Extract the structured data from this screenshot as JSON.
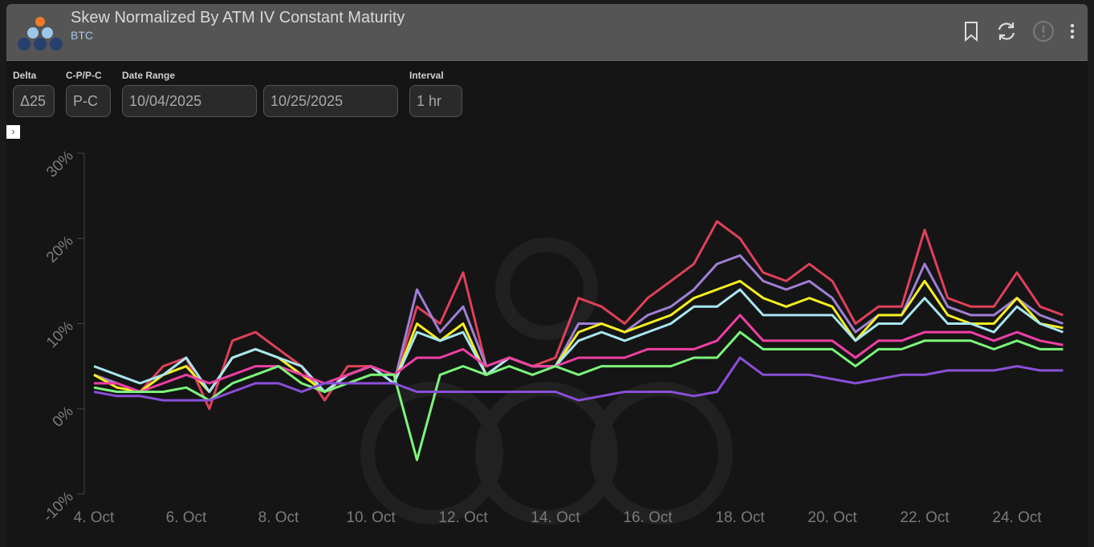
{
  "header": {
    "title": "Skew Normalized By ATM IV Constant Maturity",
    "subtitle": "BTC",
    "icons": [
      "bookmark-icon",
      "refresh-icon",
      "alert-icon",
      "more-vertical-icon"
    ]
  },
  "controls": {
    "delta": {
      "label": "Delta",
      "value": "Δ25"
    },
    "cp": {
      "label": "C-P/P-C",
      "value": "P-C"
    },
    "date_range": {
      "label": "Date Range",
      "start": "10/04/2025",
      "end": "10/25/2025"
    },
    "interval": {
      "label": "Interval",
      "value": "1 hr"
    }
  },
  "chart_data": {
    "type": "line",
    "title": "",
    "xlabel": "",
    "ylabel": "",
    "ylim": [
      -10,
      30
    ],
    "yticks": [
      "-10%",
      "0%",
      "10%",
      "20%",
      "30%"
    ],
    "ytick_values": [
      -10,
      0,
      10,
      20,
      30
    ],
    "xticks": [
      "4. Oct",
      "6. Oct",
      "8. Oct",
      "10. Oct",
      "12. Oct",
      "14. Oct",
      "16. Oct",
      "18. Oct",
      "20. Oct",
      "22. Oct",
      "24. Oct"
    ],
    "xtick_days": [
      0,
      2,
      4,
      6,
      8,
      10,
      12,
      14,
      16,
      18,
      20
    ],
    "x_start": "2025-10-04",
    "x_step_days": 0.5,
    "grid": false,
    "legend": "none",
    "series": [
      {
        "color": "#e0405a",
        "values": [
          4,
          3,
          2,
          5,
          6,
          0,
          8,
          9,
          7,
          5,
          1,
          5,
          5,
          3,
          12,
          10,
          16,
          5,
          6,
          5,
          6,
          13,
          12,
          10,
          13,
          15,
          17,
          22,
          20,
          16,
          15,
          17,
          15,
          10,
          12,
          12,
          21,
          13,
          12,
          12,
          16,
          12,
          11
        ]
      },
      {
        "color": "#a07fd6",
        "values": [
          4,
          3,
          2,
          4,
          5,
          2,
          6,
          7,
          6,
          4,
          2,
          4,
          5,
          3,
          14,
          9,
          12,
          5,
          6,
          5,
          5,
          10,
          10,
          9,
          11,
          12,
          14,
          17,
          18,
          15,
          14,
          15,
          13,
          9,
          11,
          11,
          17,
          12,
          11,
          11,
          13,
          11,
          10
        ]
      },
      {
        "color": "#f5f01e",
        "values": [
          4,
          2.5,
          2,
          4,
          5,
          2,
          6,
          7,
          6,
          4,
          2,
          4,
          5,
          3,
          10,
          8,
          10,
          4,
          6,
          5,
          5,
          9,
          10,
          9,
          10,
          11,
          13,
          14,
          15,
          13,
          12,
          13,
          12,
          8,
          11,
          11,
          15,
          11,
          10,
          10,
          13,
          10,
          9.5
        ]
      },
      {
        "color": "#a8e6f0",
        "values": [
          5,
          4,
          3,
          4,
          6,
          2,
          6,
          7,
          6,
          5,
          2,
          4,
          5,
          3,
          9,
          8,
          9,
          4,
          6,
          5,
          5,
          8,
          9,
          8,
          9,
          10,
          12,
          12,
          14,
          11,
          11,
          11,
          11,
          8,
          10,
          10,
          13,
          10,
          10,
          9,
          12,
          10,
          9
        ]
      },
      {
        "color": "#ef3fa5",
        "values": [
          3,
          3,
          2,
          3,
          4,
          3,
          4,
          5,
          5,
          4,
          3,
          4,
          5,
          4,
          6,
          6,
          7,
          5,
          6,
          5,
          5,
          6,
          6,
          6,
          7,
          7,
          7,
          8,
          11,
          8,
          8,
          8,
          8,
          6,
          8,
          8,
          9,
          9,
          9,
          8,
          9,
          8,
          7.5
        ]
      },
      {
        "color": "#7cf57a",
        "values": [
          2.5,
          2,
          2,
          2,
          2.5,
          1,
          3,
          4,
          5,
          3,
          2,
          3,
          4,
          4,
          -6,
          4,
          5,
          4,
          5,
          4,
          5,
          4,
          5,
          5,
          5,
          5,
          6,
          6,
          9,
          7,
          7,
          7,
          7,
          5,
          7,
          7,
          8,
          8,
          8,
          7,
          8,
          7,
          7
        ]
      },
      {
        "color": "#8a4fd8",
        "values": [
          2,
          1.5,
          1.5,
          1,
          1,
          1,
          2,
          3,
          3,
          2,
          3,
          3,
          3,
          3,
          2,
          2,
          2,
          2,
          2,
          2,
          2,
          1,
          1.5,
          2,
          2,
          2,
          1.5,
          2,
          6,
          4,
          4,
          4,
          3.5,
          3,
          3.5,
          4,
          4,
          4.5,
          4.5,
          4.5,
          5,
          4.5,
          4.5
        ]
      }
    ]
  }
}
